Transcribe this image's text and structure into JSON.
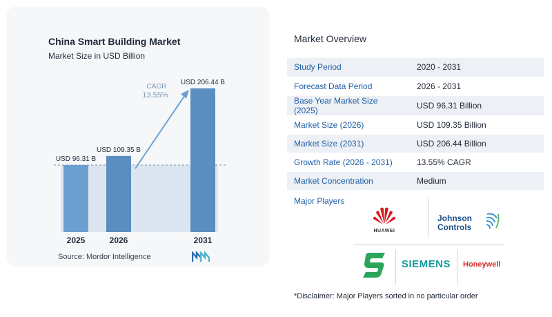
{
  "chart_data": {
    "type": "bar",
    "title": "China Smart Building Market",
    "subtitle": "Market Size in USD Billion",
    "categories": [
      "2025",
      "2026",
      "2031"
    ],
    "values": [
      96.31,
      109.35,
      206.44
    ],
    "value_labels": [
      "USD 96.31 B",
      "USD 109.35 B",
      "USD 206.44 B"
    ],
    "cagr_label": "CAGR",
    "cagr_value": "13.55%",
    "colors": {
      "bar_light": "#6b9fcf",
      "bar_dark": "#5a8ec0",
      "band": "#dbe6f0",
      "arrow": "#6b9fcf",
      "cagr_text": "#7a96b3"
    }
  },
  "source_text": "Source:  Mordor Intelligence",
  "overview": {
    "title": "Market Overview",
    "rows": [
      {
        "key": "Study Period",
        "value": "2020 - 2031"
      },
      {
        "key": "Forecast Data Period",
        "value": "2026 - 2031"
      },
      {
        "key": "Base Year Market Size (2025)",
        "value": "USD 96.31 Billion"
      },
      {
        "key": "Market Size (2026)",
        "value": "USD 109.35 Billion"
      },
      {
        "key": "Market Size (2031)",
        "value": "USD 206.44 Billion"
      },
      {
        "key": "Growth Rate (2026 - 2031)",
        "value": "13.55% CAGR"
      },
      {
        "key": "Market Concentration",
        "value": "Medium"
      }
    ]
  },
  "players": {
    "label": "Major Players",
    "huawei": "HUAWEI",
    "johnson_line1": "Johnson",
    "johnson_line2": "Controls",
    "siemens": "SIEMENS",
    "honeywell": "Honeywell"
  },
  "disclaimer": "*Disclaimer: Major Players sorted in no particular order"
}
